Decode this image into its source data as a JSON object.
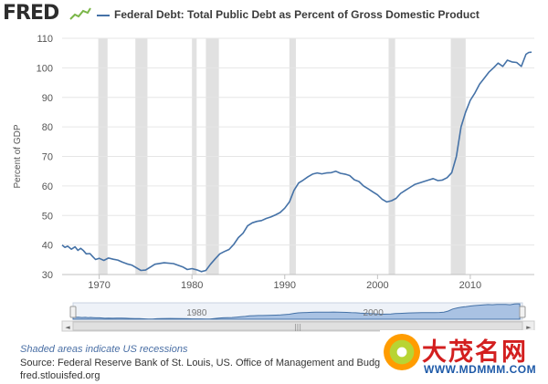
{
  "header": {
    "logo_text": "FRED",
    "title": "Federal Debt: Total Public Debt as Percent of Gross Domestic Product"
  },
  "colors": {
    "series": "#4572a7",
    "recession": "#e1e1e1",
    "grid": "#e6e6e6",
    "navigator_fill": "#a9c2e3"
  },
  "chart_data": {
    "type": "line",
    "ylabel": "Percent of GDP",
    "xlim": [
      1966,
      2016.9
    ],
    "ylim": [
      30,
      110
    ],
    "y_ticks": [
      30,
      40,
      50,
      60,
      70,
      80,
      90,
      100,
      110
    ],
    "x_ticks": [
      1970,
      1980,
      1990,
      2000,
      2010
    ],
    "grid": "horizontal",
    "recessions": [
      [
        1969.9,
        1970.9
      ],
      [
        1973.9,
        1975.2
      ],
      [
        1980.0,
        1980.5
      ],
      [
        1981.5,
        1982.9
      ],
      [
        1990.5,
        1991.2
      ],
      [
        2001.2,
        2001.9
      ],
      [
        2007.9,
        2009.5
      ]
    ],
    "series": [
      {
        "x": [
          1966,
          1966.3,
          1966.6,
          1967,
          1967.4,
          1967.7,
          1968,
          1968.3,
          1968.6,
          1969,
          1969.3,
          1969.6,
          1970,
          1970.5,
          1971,
          1971.5,
          1972,
          1972.5,
          1973,
          1973.5,
          1974,
          1974.5,
          1975,
          1975.5,
          1976,
          1977,
          1978,
          1979,
          1979.5,
          1980,
          1980.5,
          1981,
          1981.5,
          1982,
          1982.5,
          1983,
          1983.5,
          1984,
          1984.5,
          1985,
          1985.5,
          1986,
          1986.5,
          1987,
          1987.5,
          1988,
          1988.5,
          1989,
          1989.5,
          1990,
          1990.5,
          1991,
          1991.5,
          1992,
          1992.5,
          1993,
          1993.5,
          1994,
          1994.5,
          1995,
          1995.5,
          1996,
          1996.5,
          1997,
          1997.5,
          1998,
          1998.5,
          1999,
          1999.5,
          2000,
          2000.5,
          2001,
          2001.5,
          2002,
          2002.5,
          2003,
          2003.5,
          2004,
          2004.5,
          2005,
          2005.5,
          2006,
          2006.5,
          2007,
          2007.5,
          2008,
          2008.5,
          2009,
          2009.5,
          2010,
          2010.5,
          2011,
          2011.5,
          2012,
          2012.5,
          2013,
          2013.5,
          2014,
          2014.5,
          2015,
          2015.5,
          2016,
          2016.3,
          2016.6
        ],
        "values": [
          40.0,
          39.2,
          39.6,
          38.6,
          39.4,
          38.2,
          38.9,
          38.1,
          37.0,
          37.1,
          36.1,
          35.1,
          35.5,
          34.8,
          35.6,
          35.2,
          34.9,
          34.2,
          33.6,
          33.2,
          32.3,
          31.4,
          31.5,
          32.5,
          33.5,
          34.0,
          33.7,
          32.6,
          31.7,
          32.0,
          31.6,
          31.0,
          31.4,
          33.5,
          35.3,
          37.0,
          37.8,
          38.5,
          40.2,
          42.5,
          44.0,
          46.5,
          47.5,
          48.0,
          48.3,
          49.0,
          49.5,
          50.2,
          51.0,
          52.5,
          54.6,
          58.5,
          61.0,
          62.0,
          63.1,
          64.0,
          64.4,
          64.1,
          64.4,
          64.5,
          65.0,
          64.3,
          64.0,
          63.5,
          62.1,
          61.5,
          60.0,
          59.0,
          58.0,
          57.0,
          55.5,
          54.6,
          55.0,
          55.8,
          57.5,
          58.5,
          59.5,
          60.5,
          61.0,
          61.5,
          62.0,
          62.5,
          61.8,
          62.0,
          62.8,
          64.5,
          70.0,
          80.0,
          85.0,
          89.0,
          91.5,
          94.5,
          96.5,
          98.5,
          100.0,
          101.6,
          100.5,
          102.6,
          102.0,
          101.8,
          100.5,
          104.6,
          105.2,
          105.3
        ]
      }
    ]
  },
  "navigator": {
    "labels": [
      "1980",
      "2000"
    ],
    "left_arrow": "◄",
    "right_arrow": "►",
    "grip": "|||"
  },
  "footer": {
    "note": "Shaded areas indicate US recessions",
    "source": "Source: Federal Reserve Bank of St. Louis, US. Office of Management and Budget",
    "url": "fred.stlouisfed.org"
  },
  "watermark": {
    "text": "大茂名网",
    "url": "WWW.MDMMM.COM"
  }
}
